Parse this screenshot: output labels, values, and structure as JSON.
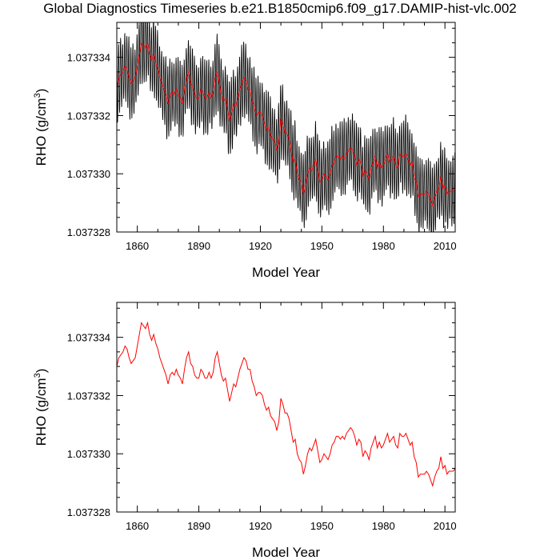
{
  "title": "Global Diagnostics Timeseries b.e21.B1850cmip6.f09_g17.DAMIP-hist-vlc.002",
  "colors": {
    "monthly": "#000000",
    "annual": "#ff0000",
    "axes": "#000000"
  },
  "chart_data": [
    {
      "type": "line",
      "xlabel": "Model Year",
      "ylabel": "RHO (g/cm3)",
      "ylabel_main": "RHO (g/cm",
      "ylabel_sup": "3",
      "ylabel_close": ")",
      "xlim": [
        1850,
        2015
      ],
      "ylim": [
        1.037328,
        1.0373352
      ],
      "xticks": [
        1860,
        1890,
        1920,
        1950,
        1980,
        2010
      ],
      "yticks": [
        1.037328,
        1.03733,
        1.037332,
        1.037334
      ],
      "ytick_labels": [
        "1.037328",
        "1.037330",
        "1.037332",
        "1.037334"
      ],
      "series": [
        {
          "style": "monthly-envelope",
          "amplitude": 1.2e-06
        },
        {
          "style": "annual"
        }
      ]
    },
    {
      "type": "line",
      "xlabel": "Model Year",
      "ylabel": "RHO (g/cm3)",
      "ylabel_main": "RHO (g/cm",
      "ylabel_sup": "3",
      "ylabel_close": ")",
      "xlim": [
        1850,
        2015
      ],
      "ylim": [
        1.037328,
        1.0373352
      ],
      "xticks": [
        1860,
        1890,
        1920,
        1950,
        1980,
        2010
      ],
      "yticks": [
        1.037328,
        1.03733,
        1.037332,
        1.037334
      ],
      "ytick_labels": [
        "1.037328",
        "1.037330",
        "1.037332",
        "1.037334"
      ],
      "series": [
        {
          "style": "annual"
        }
      ]
    }
  ],
  "annual_x_start": 1850,
  "annual_values": [
    1.037333,
    1.0373333,
    1.0373334,
    1.0373335,
    1.0373337,
    1.0373336,
    1.0373333,
    1.0373331,
    1.0373332,
    1.0373333,
    1.0373337,
    1.0373341,
    1.0373345,
    1.0373344,
    1.0373343,
    1.0373345,
    1.0373341,
    1.0373339,
    1.0373341,
    1.0373338,
    1.0373336,
    1.0373333,
    1.0373331,
    1.0373329,
    1.0373327,
    1.0373324,
    1.0373327,
    1.0373328,
    1.0373327,
    1.0373329,
    1.0373327,
    1.0373326,
    1.0373324,
    1.0373329,
    1.0373333,
    1.0373335,
    1.0373331,
    1.037333,
    1.0373327,
    1.0373326,
    1.0373326,
    1.0373329,
    1.0373328,
    1.0373326,
    1.0373326,
    1.0373328,
    1.0373326,
    1.0373328,
    1.0373333,
    1.0373335,
    1.0373331,
    1.0373327,
    1.0373325,
    1.0373326,
    1.0373322,
    1.0373318,
    1.0373321,
    1.0373324,
    1.0373323,
    1.0373326,
    1.0373329,
    1.0373331,
    1.0373333,
    1.0373332,
    1.0373329,
    1.0373329,
    1.0373325,
    1.0373323,
    1.037332,
    1.0373321,
    1.0373321,
    1.037332,
    1.0373317,
    1.0373315,
    1.0373316,
    1.0373313,
    1.0373312,
    1.0373311,
    1.0373308,
    1.0373311,
    1.0373319,
    1.0373317,
    1.0373314,
    1.0373314,
    1.0373312,
    1.0373308,
    1.0373304,
    1.0373305,
    1.03733,
    1.0373298,
    1.0373297,
    1.0373293,
    1.0373296,
    1.03733,
    1.0373302,
    1.0373301,
    1.0373303,
    1.0373305,
    1.0373301,
    1.0373297,
    1.0373298,
    1.03733,
    1.0373299,
    1.0373298,
    1.03733,
    1.0373303,
    1.0373304,
    1.0373306,
    1.0373306,
    1.0373305,
    1.0373306,
    1.0373305,
    1.0373307,
    1.0373308,
    1.0373309,
    1.0373308,
    1.0373306,
    1.0373303,
    1.0373305,
    1.0373304,
    1.0373299,
    1.0373301,
    1.03733,
    1.0373298,
    1.0373302,
    1.0373304,
    1.0373306,
    1.0373302,
    1.0373304,
    1.0373302,
    1.0373303,
    1.0373305,
    1.0373307,
    1.0373304,
    1.0373305,
    1.0373306,
    1.0373303,
    1.0373302,
    1.0373307,
    1.0373306,
    1.0373306,
    1.0373307,
    1.0373305,
    1.0373303,
    1.0373304,
    1.0373299,
    1.0373297,
    1.0373292,
    1.0373293,
    1.0373293,
    1.0373293,
    1.0373294,
    1.0373293,
    1.0373291,
    1.0373289,
    1.0373292,
    1.0373294,
    1.0373295,
    1.0373299,
    1.0373295,
    1.0373296,
    1.0373293,
    1.0373294,
    1.0373294,
    1.0373294,
    1.0373295
  ]
}
